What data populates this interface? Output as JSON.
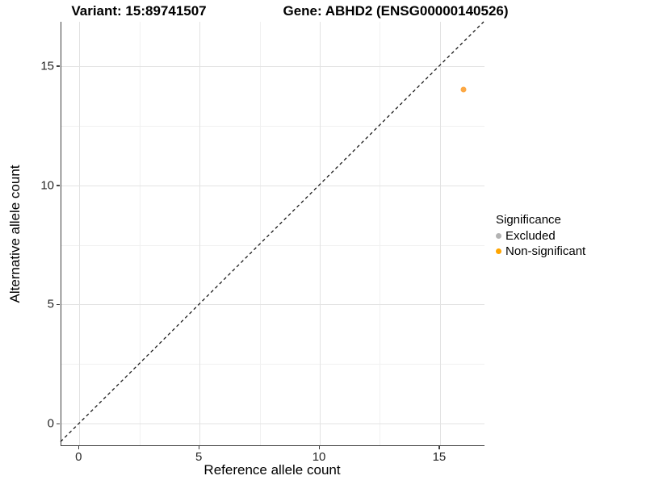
{
  "header": {
    "variant_title": "Variant: 15:89741507",
    "gene_title": "Gene: ABHD2 (ENSG00000140526)"
  },
  "axes": {
    "x_label": "Reference allele count",
    "y_label": "Alternative allele count"
  },
  "legend": {
    "title": "Significance",
    "position": "right",
    "items": [
      {
        "label": "Excluded",
        "color": "#b3b3b3"
      },
      {
        "label": "Non-significant",
        "color": "#ffa500"
      }
    ]
  },
  "colors": {
    "point_orange": "#fca844",
    "excluded_gray": "#b3b3b3",
    "identity_line": "#1a1a1a",
    "axis_line": "#3f3f3f",
    "grid_major": "#e3e3e3",
    "grid_minor": "#f1f1f1"
  },
  "chart_data": {
    "type": "scatter",
    "title": "Variant: 15:89741507   Gene: ABHD2 (ENSG00000140526)",
    "xlabel": "Reference allele count",
    "ylabel": "Alternative allele count",
    "xlim": [
      -0.75,
      16.85
    ],
    "ylim": [
      -0.9,
      16.85
    ],
    "x_ticks": [
      0,
      5,
      10,
      15
    ],
    "y_ticks": [
      0,
      5,
      10,
      15
    ],
    "x_minor_ticks": [
      2.5,
      7.5,
      12.5
    ],
    "y_minor_ticks": [
      2.5,
      7.5,
      12.5
    ],
    "grid": true,
    "legend_position": "right",
    "identity_line": {
      "equation": "y = x",
      "style": "dashed",
      "color": "#1a1a1a"
    },
    "series": [
      {
        "name": "Excluded",
        "color": "#b3b3b3",
        "points": []
      },
      {
        "name": "Non-significant",
        "color": "#fca844",
        "points": [
          {
            "x": 16,
            "y": 14
          }
        ]
      }
    ]
  }
}
